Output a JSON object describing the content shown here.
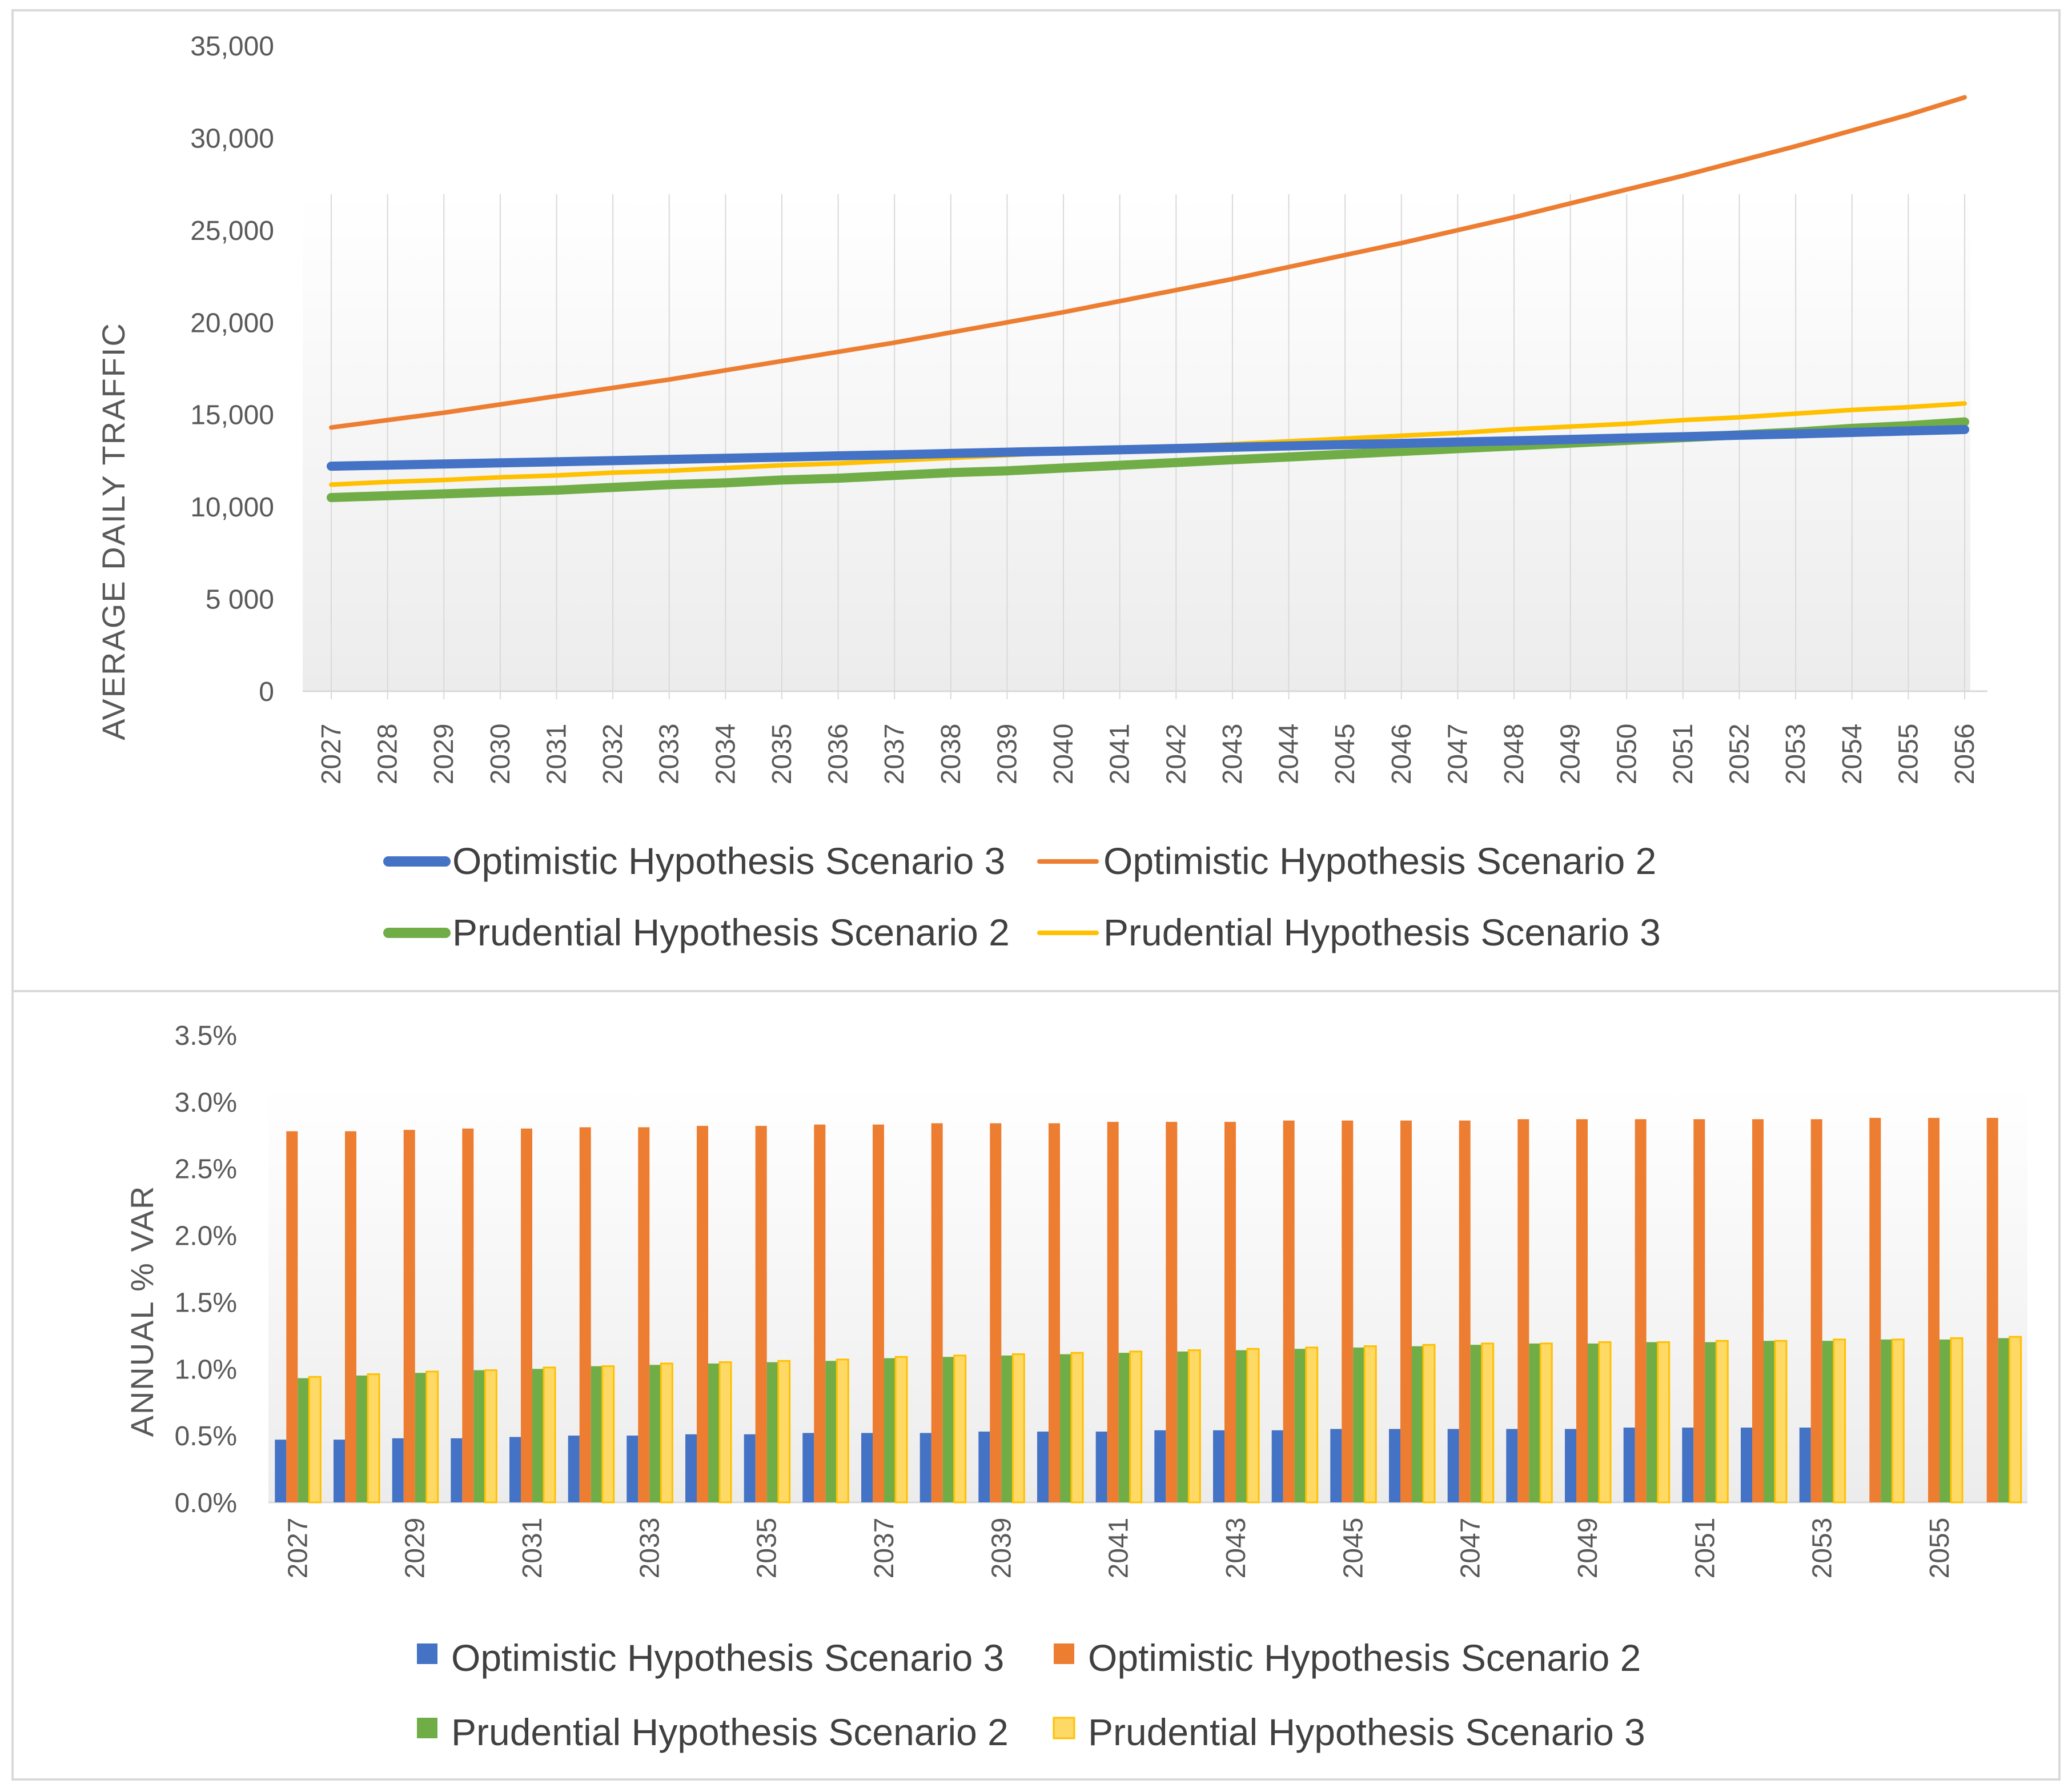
{
  "colors": {
    "optimistic_s3": "#4472C4",
    "optimistic_s2": "#ED7D31",
    "prudential_s2": "#70AD47",
    "prudential_s3": "#FFC000",
    "prudential_s3_fill": "#FFD966",
    "gridline": "#D9D9D9",
    "text": "#595959",
    "border": "#D9D9D9"
  },
  "chart_data": [
    {
      "type": "line",
      "title": "",
      "xlabel": "",
      "ylabel": "AVERAGE DAILY TRAFFIC",
      "ylim": [
        0,
        35000
      ],
      "y_ticks": [
        "0",
        "5 000",
        "10,000",
        "15,000",
        "20,000",
        "25,000",
        "30,000",
        "35,000"
      ],
      "x": [
        2027,
        2028,
        2029,
        2030,
        2031,
        2032,
        2033,
        2034,
        2035,
        2036,
        2037,
        2038,
        2039,
        2040,
        2041,
        2042,
        2043,
        2044,
        2045,
        2046,
        2047,
        2048,
        2049,
        2050,
        2051,
        2052,
        2053,
        2054,
        2055,
        2056
      ],
      "x_tick_labels": [
        "2027",
        "2028",
        "2029",
        "2030",
        "2031",
        "2032",
        "2033",
        "2034",
        "2035",
        "2036",
        "2037",
        "2038",
        "2039",
        "2040",
        "2041",
        "2042",
        "2043",
        "2044",
        "2045",
        "2046",
        "2047",
        "2048",
        "2049",
        "2050",
        "2051",
        "2052",
        "2053",
        "2054",
        "2055",
        "2056"
      ],
      "grid": "vertical",
      "legend_position": "bottom",
      "series": [
        {
          "name": "Optimistic Hypothesis Scenario 3",
          "color_key": "optimistic_s3",
          "line_width": "thick",
          "values": [
            12200,
            12260,
            12320,
            12380,
            12440,
            12500,
            12570,
            12630,
            12690,
            12760,
            12820,
            12890,
            12960,
            13020,
            13090,
            13160,
            13230,
            13300,
            13370,
            13440,
            13510,
            13580,
            13650,
            13730,
            13800,
            13880,
            13950,
            14030,
            14110,
            14190
          ]
        },
        {
          "name": "Optimistic Hypothesis Scenario 2",
          "color_key": "optimistic_s2",
          "line_width": "normal",
          "values": [
            14300,
            14700,
            15100,
            15550,
            16000,
            16450,
            16900,
            17400,
            17900,
            18400,
            18900,
            19450,
            20000,
            20550,
            21150,
            21750,
            22350,
            23000,
            23650,
            24300,
            25000,
            25700,
            26450,
            27200,
            27950,
            28750,
            29550,
            30400,
            31250,
            32200
          ]
        },
        {
          "name": "Prudential Hypothesis Scenario 2",
          "color_key": "prudential_s2",
          "line_width": "thick",
          "values": [
            10500,
            10600,
            10700,
            10800,
            10900,
            11050,
            11200,
            11300,
            11450,
            11550,
            11700,
            11850,
            11950,
            12100,
            12250,
            12400,
            12550,
            12700,
            12850,
            13000,
            13150,
            13300,
            13450,
            13600,
            13750,
            13900,
            14050,
            14250,
            14400,
            14600
          ]
        },
        {
          "name": "Prudential Hypothesis Scenario 3",
          "color_key": "prudential_s3",
          "line_width": "normal",
          "values": [
            11200,
            11350,
            11450,
            11600,
            11700,
            11850,
            11950,
            12100,
            12250,
            12350,
            12500,
            12650,
            12800,
            12950,
            13100,
            13250,
            13400,
            13550,
            13700,
            13850,
            14000,
            14200,
            14350,
            14500,
            14700,
            14850,
            15050,
            15250,
            15400,
            15600
          ]
        }
      ]
    },
    {
      "type": "bar",
      "title": "",
      "xlabel": "",
      "ylabel": "ANNUAL % VAR",
      "ylim": [
        0,
        3.5
      ],
      "y_ticks": [
        "0.0%",
        "0.5%",
        "1.0%",
        "1.5%",
        "2.0%",
        "2.5%",
        "3.0%",
        "3.5%"
      ],
      "categories": [
        2027,
        2028,
        2029,
        2030,
        2031,
        2032,
        2033,
        2034,
        2035,
        2036,
        2037,
        2038,
        2039,
        2040,
        2041,
        2042,
        2043,
        2044,
        2045,
        2046,
        2047,
        2048,
        2049,
        2050,
        2051,
        2052,
        2053,
        2054,
        2055,
        2056
      ],
      "x_tick_labels": [
        "2027",
        "2029",
        "2031",
        "2033",
        "2035",
        "2037",
        "2039",
        "2041",
        "2043",
        "2045",
        "2047",
        "2049",
        "2051",
        "2053",
        "2055"
      ],
      "legend_position": "bottom",
      "series": [
        {
          "name": "Optimistic Hypothesis Scenario 3",
          "color_key": "optimistic_s3",
          "values": [
            0.47,
            0.47,
            0.48,
            0.48,
            0.49,
            0.5,
            0.5,
            0.51,
            0.51,
            0.52,
            0.52,
            0.52,
            0.53,
            0.53,
            0.53,
            0.54,
            0.54,
            0.54,
            0.55,
            0.55,
            0.55,
            0.55,
            0.55,
            0.56,
            0.56,
            0.56,
            0.56,
            0,
            0,
            0
          ]
        },
        {
          "name": "Optimistic Hypothesis Scenario 2",
          "color_key": "optimistic_s2",
          "values": [
            2.78,
            2.78,
            2.79,
            2.8,
            2.8,
            2.81,
            2.81,
            2.82,
            2.82,
            2.83,
            2.83,
            2.84,
            2.84,
            2.84,
            2.85,
            2.85,
            2.85,
            2.86,
            2.86,
            2.86,
            2.86,
            2.87,
            2.87,
            2.87,
            2.87,
            2.87,
            2.87,
            2.88,
            2.88,
            2.88
          ]
        },
        {
          "name": "Prudential Hypothesis Scenario 2",
          "color_key": "prudential_s2",
          "values": [
            0.93,
            0.95,
            0.97,
            0.99,
            1.0,
            1.02,
            1.03,
            1.04,
            1.05,
            1.06,
            1.08,
            1.09,
            1.1,
            1.11,
            1.12,
            1.13,
            1.14,
            1.15,
            1.16,
            1.17,
            1.18,
            1.19,
            1.19,
            1.2,
            1.2,
            1.21,
            1.21,
            1.22,
            1.22,
            1.23
          ]
        },
        {
          "name": "Prudential Hypothesis Scenario 3",
          "color_key": "prudential_s3_fill",
          "values": [
            0.94,
            0.96,
            0.98,
            0.99,
            1.01,
            1.02,
            1.04,
            1.05,
            1.06,
            1.07,
            1.09,
            1.1,
            1.11,
            1.12,
            1.13,
            1.14,
            1.15,
            1.16,
            1.17,
            1.18,
            1.19,
            1.19,
            1.2,
            1.2,
            1.21,
            1.21,
            1.22,
            1.22,
            1.23,
            1.24
          ]
        }
      ]
    }
  ],
  "legend_top": [
    {
      "label": "Optimistic Hypothesis Scenario 3",
      "color_key": "optimistic_s3",
      "marker": "line-thick"
    },
    {
      "label": "Optimistic Hypothesis Scenario 2",
      "color_key": "optimistic_s2",
      "marker": "line"
    },
    {
      "label": "Prudential Hypothesis Scenario 2",
      "color_key": "prudential_s2",
      "marker": "line-thick"
    },
    {
      "label": "Prudential Hypothesis Scenario 3",
      "color_key": "prudential_s3",
      "marker": "line"
    }
  ],
  "legend_bottom": [
    {
      "label": "Optimistic Hypothesis Scenario 3",
      "color_key": "optimistic_s3",
      "marker": "square"
    },
    {
      "label": "Optimistic Hypothesis Scenario 2",
      "color_key": "optimistic_s2",
      "marker": "square"
    },
    {
      "label": "Prudential Hypothesis Scenario 2",
      "color_key": "prudential_s2",
      "marker": "square"
    },
    {
      "label": "Prudential Hypothesis Scenario 3",
      "color_key": "prudential_s3_fill",
      "marker": "square"
    }
  ]
}
